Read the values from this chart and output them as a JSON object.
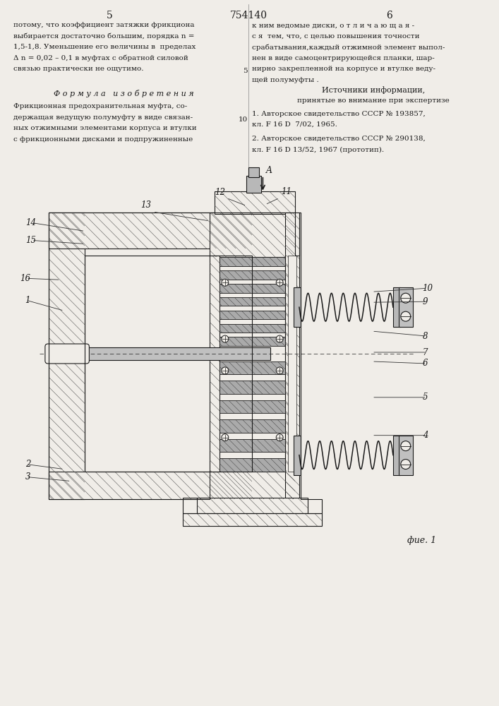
{
  "page_width": 7.07,
  "page_height": 10.0,
  "bg_color": "#f0ede8",
  "header_number": "754140",
  "left_col_number": "5",
  "right_col_number": "6",
  "left_text_lines": [
    "потому, что коэффициент затяжки фрикциона",
    "выбирается достаточно большим, порядка n =",
    "1,5-1,8. Уменьшение его величины в  пределах",
    "Δ n = 0,02 – 0,1 в муфтах с обратной силовой",
    "связью практически не ощутимо."
  ],
  "formula_title": "Ф о р м у л а   и з о б р е т е н и я",
  "formula_text_lines": [
    "Фрикционная предохранительная муфта, со-",
    "держащая ведущую полумуфту в виде связан-",
    "ных отжимными элементами корпуса и втулки",
    "с фрикционными дисками и подпружиненные"
  ],
  "right_text_lines": [
    "к ним ведомые диски, о т л и ч а ю щ а я -",
    "с я  тем, что, с целью повышения точности",
    "срабатывания,каждый отжимной элемент выпол-",
    "нен в виде самоцентрирующейся планки, шар-",
    "нирно закрепленной на корпусе и втулке веду-",
    "щей полумуфты ."
  ],
  "sources_title": "Источники информации,",
  "sources_subtitle": "принятые во внимание при экспертизе",
  "source1": "1. Авторское свидетельство СССР № 193857,",
  "source1b": "кл. F 16 D  7/02, 1965.",
  "source2": "2. Авторское свидетельство СССР № 290138,",
  "source2b": "кл. F 16 D 13/52, 1967 (прототип).",
  "fig_label": "фue. 1",
  "text_color": "#1a1a1a",
  "draw_color": "#1a1a1a",
  "hatch_color": "#444444",
  "draw_bg": "#f0ede8"
}
